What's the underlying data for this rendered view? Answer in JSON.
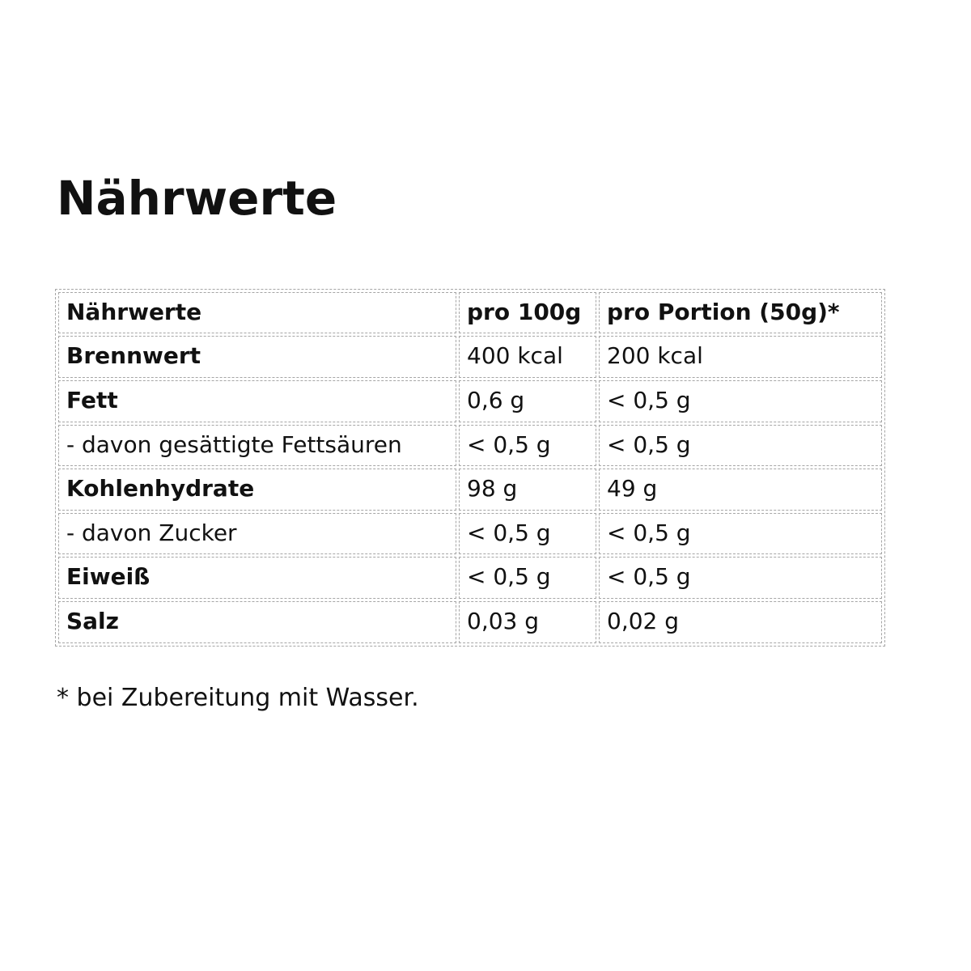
{
  "page": {
    "title": "Nährwerte",
    "footnote": "* bei Zubereitung mit Wasser."
  },
  "table": {
    "headers": {
      "label": "Nährwerte",
      "per100g": "pro 100g",
      "portion": "pro Portion (50g)*"
    },
    "rows": [
      {
        "label": "Brennwert",
        "per100g": "400 kcal",
        "portion": "200 kcal"
      },
      {
        "label": "Fett",
        "per100g": "0,6 g",
        "portion": "< 0,5 g"
      },
      {
        "label": "- davon gesättigte Fettsäuren",
        "per100g": "< 0,5 g",
        "portion": "< 0,5 g"
      },
      {
        "label": "Kohlenhydrate",
        "per100g": "98 g",
        "portion": "49 g"
      },
      {
        "label": "- davon Zucker",
        "per100g": "< 0,5 g",
        "portion": "< 0,5 g"
      },
      {
        "label": "Eiweiß",
        "per100g": "< 0,5 g",
        "portion": "< 0,5 g"
      },
      {
        "label": "Salz",
        "per100g": "0,03 g",
        "portion": "0,02 g"
      }
    ]
  }
}
